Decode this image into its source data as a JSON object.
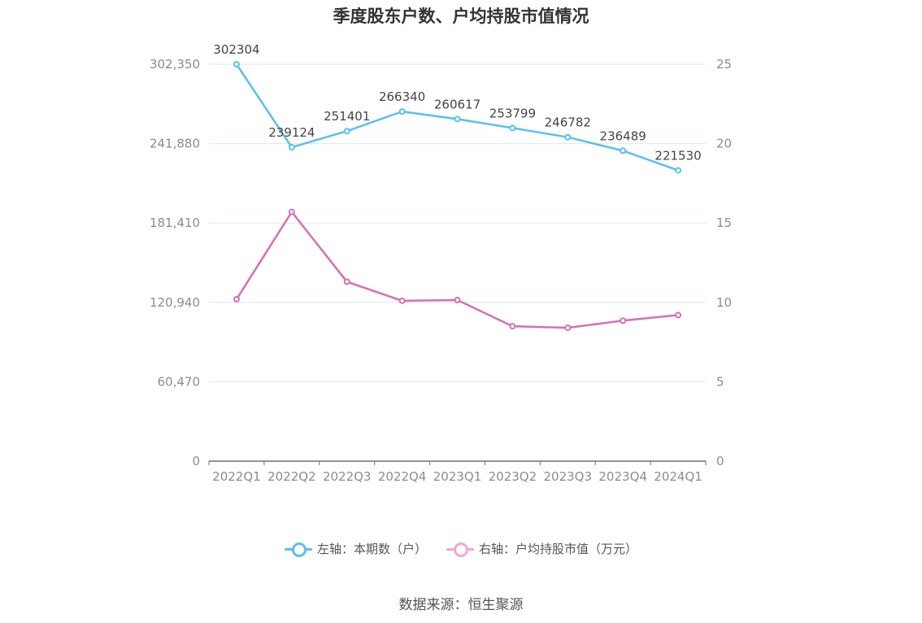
{
  "title": "季度股东户数、户均持股市值情况",
  "source": "数据来源：恒生聚源",
  "chart_data": {
    "type": "line",
    "categories": [
      "2022Q1",
      "2022Q2",
      "2022Q3",
      "2022Q4",
      "2023Q1",
      "2023Q2",
      "2023Q3",
      "2023Q4",
      "2024Q1"
    ],
    "left_axis": {
      "ticks": [
        "0",
        "60,470",
        "120,940",
        "181,410",
        "241,880",
        "302,350"
      ],
      "ylim": [
        0,
        302350
      ]
    },
    "right_axis": {
      "ticks": [
        "0",
        "5",
        "10",
        "15",
        "20",
        "25"
      ],
      "ylim": [
        0,
        25
      ]
    },
    "series": [
      {
        "name": "左轴：本期数（户）",
        "axis": "left",
        "color": "#5bbfee",
        "values": [
          302304,
          239124,
          251401,
          266340,
          260617,
          253799,
          246782,
          236489,
          221530
        ],
        "labels": [
          "302304",
          "239124",
          "251401",
          "266340",
          "260617",
          "253799",
          "246782",
          "236489",
          "221530"
        ]
      },
      {
        "name": "右轴：户均持股市值（万元）",
        "axis": "right",
        "color": "#d86eb3",
        "values": [
          10.2,
          15.7,
          11.3,
          10.1,
          10.15,
          8.5,
          8.4,
          8.85,
          9.2
        ]
      }
    ],
    "grid": true,
    "legend": "bottom-center"
  }
}
